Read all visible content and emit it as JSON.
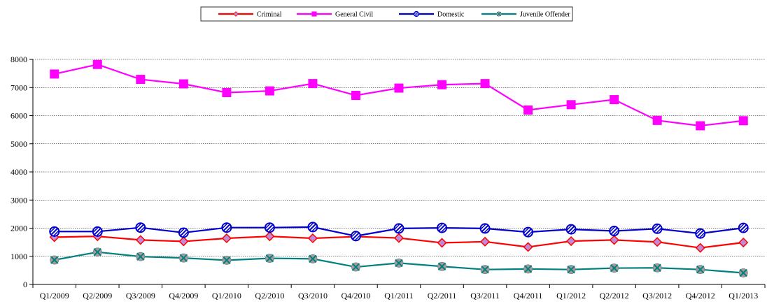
{
  "chart_data": {
    "type": "line",
    "title": "",
    "xlabel": "",
    "ylabel": "",
    "categories": [
      "Q1/2009",
      "Q2/2009",
      "Q3/2009",
      "Q4/2009",
      "Q1/2010",
      "Q2/2010",
      "Q3/2010",
      "Q4/2010",
      "Q1/2011",
      "Q2/2011",
      "Q3/2011",
      "Q4/2011",
      "Q1/2012",
      "Q2/2012",
      "Q3/2012",
      "Q4/2012",
      "Q1/2013"
    ],
    "ylim": [
      0,
      8000
    ],
    "yticks": [
      0,
      1000,
      2000,
      3000,
      4000,
      5000,
      6000,
      7000,
      8000
    ],
    "grid": true,
    "legend_position": "top-center",
    "series": [
      {
        "name": "Criminal",
        "color": "#ff0000",
        "marker": "diamond",
        "values": [
          1680,
          1710,
          1580,
          1530,
          1640,
          1710,
          1640,
          1700,
          1650,
          1480,
          1520,
          1330,
          1540,
          1580,
          1510,
          1300,
          1490
        ]
      },
      {
        "name": "General Civil",
        "color": "#ff00ff",
        "marker": "square",
        "values": [
          7480,
          7820,
          7290,
          7130,
          6820,
          6880,
          7140,
          6720,
          6980,
          7100,
          7140,
          6200,
          6390,
          6570,
          5830,
          5640,
          5820
        ]
      },
      {
        "name": "Domestic",
        "color": "#0000cc",
        "marker": "circle",
        "values": [
          1880,
          1880,
          2020,
          1840,
          2020,
          2020,
          2040,
          1720,
          1990,
          2010,
          1990,
          1860,
          1960,
          1900,
          1980,
          1810,
          2010
        ]
      },
      {
        "name": "Juvenile Offender",
        "color": "#008080",
        "marker": "x",
        "values": [
          870,
          1150,
          990,
          940,
          860,
          930,
          910,
          620,
          760,
          640,
          530,
          550,
          530,
          580,
          590,
          530,
          410
        ]
      }
    ]
  }
}
